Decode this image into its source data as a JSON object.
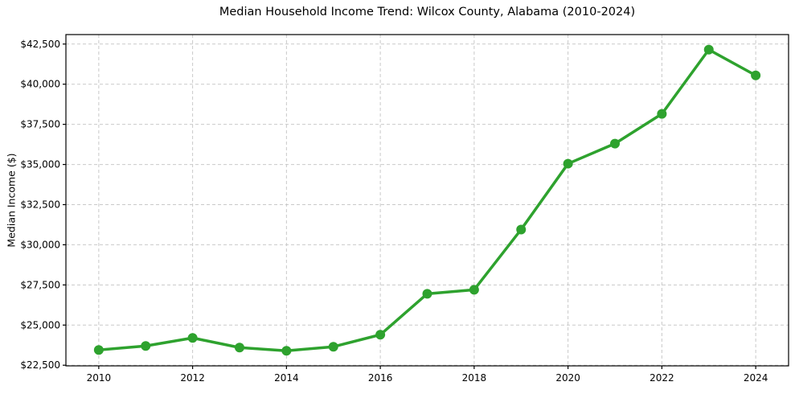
{
  "figure": {
    "title": "Median Household Income Trend: Wilcox County, Alabama (2010-2024)",
    "ylabel": "Median Income ($)"
  },
  "chart_data": {
    "type": "line",
    "title": "Median Household Income Trend: Wilcox County, Alabama (2010-2024)",
    "xlabel": "",
    "ylabel": "Median Income ($)",
    "x": [
      2010,
      2011,
      2012,
      2013,
      2014,
      2015,
      2016,
      2017,
      2018,
      2019,
      2020,
      2021,
      2022,
      2023,
      2024
    ],
    "values": [
      23450,
      23700,
      24200,
      23600,
      23400,
      23650,
      24400,
      26950,
      27200,
      30950,
      35050,
      36300,
      38150,
      42150,
      40550
    ],
    "series_name": "Median household income",
    "xlim": [
      2009.3,
      2024.7
    ],
    "ylim": [
      22460,
      43090
    ],
    "xticks": [
      2010,
      2012,
      2014,
      2016,
      2018,
      2020,
      2022,
      2024
    ],
    "xtick_labels": [
      "2010",
      "2012",
      "2014",
      "2016",
      "2018",
      "2020",
      "2022",
      "2024"
    ],
    "yticks": [
      22500,
      25000,
      27500,
      30000,
      32500,
      35000,
      37500,
      40000,
      42500
    ],
    "ytick_labels": [
      "$22,500",
      "$25,000",
      "$27,500",
      "$30,000",
      "$32,500",
      "$35,000",
      "$37,500",
      "$40,000",
      "$42,500"
    ],
    "grid": true,
    "grid_style": "dashed",
    "legend": "none",
    "line_color": "#2ea22e",
    "marker": "circle",
    "marker_diameter": 12,
    "line_width": 3.5,
    "grid_color": "#c9c9c9",
    "spine_color": "#000000",
    "text_color": "#000000",
    "background_color": "#ffffff"
  }
}
